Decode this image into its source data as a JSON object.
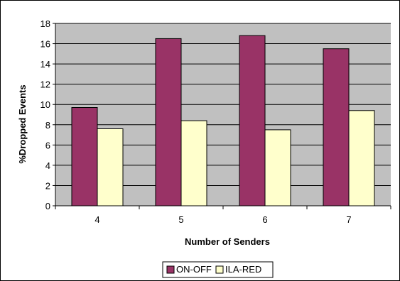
{
  "chart_data": {
    "type": "bar",
    "categories": [
      "4",
      "5",
      "6",
      "7"
    ],
    "series": [
      {
        "name": "ON-OFF",
        "values": [
          9.7,
          16.5,
          16.8,
          15.5
        ]
      },
      {
        "name": "ILA-RED",
        "values": [
          7.6,
          8.4,
          7.5,
          9.4
        ]
      }
    ],
    "title": "",
    "xlabel": "Number of Senders",
    "ylabel": "%Dropped Events",
    "ylim": [
      0,
      18
    ],
    "yticks": [
      0,
      2,
      4,
      6,
      8,
      10,
      12,
      14,
      16,
      18
    ],
    "grid": true,
    "legend_position": "bottom"
  },
  "colors": {
    "plot_background": "#c0c0c0",
    "gridline": "#000000",
    "series": [
      "#993366",
      "#ffffcc"
    ],
    "bar_edge": "#000000"
  }
}
